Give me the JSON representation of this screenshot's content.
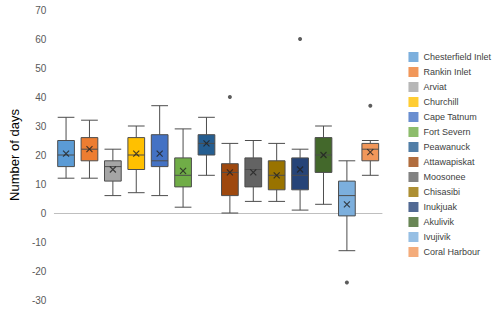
{
  "chart_data": {
    "type": "boxplot",
    "y_label": "Number of days",
    "ylim": [
      -30,
      70
    ],
    "yticks": [
      -30,
      -20,
      -10,
      0,
      10,
      20,
      30,
      40,
      50,
      60,
      70
    ],
    "grid": false,
    "legend": "right",
    "tick_labels": "y",
    "marker": "x",
    "series": [
      {
        "name": "Chesterfield Inlet",
        "color": "#5B9BD5",
        "values": [
          12,
          16,
          20,
          25,
          33
        ],
        "mean": 20.5,
        "outliers": []
      },
      {
        "name": "Rankin Inlet",
        "color": "#ED7D31",
        "values": [
          12,
          18,
          22,
          26,
          32
        ],
        "mean": 22,
        "outliers": []
      },
      {
        "name": "Arviat",
        "color": "#A5A5A5",
        "values": [
          6,
          11,
          16,
          18,
          22
        ],
        "mean": 15,
        "outliers": []
      },
      {
        "name": "Churchill",
        "color": "#FFC000",
        "values": [
          7,
          15,
          20,
          26,
          30
        ],
        "mean": 20.5,
        "outliers": []
      },
      {
        "name": "Cape Tatnum",
        "color": "#4472C4",
        "values": [
          6,
          16,
          18,
          27,
          37
        ],
        "mean": 20.5,
        "outliers": []
      },
      {
        "name": "Fort Severn",
        "color": "#70AD47",
        "values": [
          2,
          9,
          13,
          19,
          29
        ],
        "mean": 14.5,
        "outliers": []
      },
      {
        "name": "Peawanuck",
        "color": "#255E91",
        "values": [
          13,
          20,
          24,
          27,
          33
        ],
        "mean": 24,
        "outliers": []
      },
      {
        "name": "Attawapiskat",
        "color": "#9E480E",
        "values": [
          0,
          6,
          14,
          17,
          24
        ],
        "mean": 14,
        "outliers": [
          40
        ]
      },
      {
        "name": "Moosonee",
        "color": "#636363",
        "values": [
          4,
          9,
          15,
          19,
          25
        ],
        "mean": 14,
        "outliers": []
      },
      {
        "name": "Chisasibi",
        "color": "#997300",
        "values": [
          4,
          8,
          13,
          18,
          24
        ],
        "mean": 13,
        "outliers": []
      },
      {
        "name": "Inukjuak",
        "color": "#264478",
        "values": [
          1,
          8,
          13,
          19,
          22
        ],
        "mean": 15,
        "outliers": [
          60
        ]
      },
      {
        "name": "Akulivik",
        "color": "#43682B",
        "values": [
          3,
          14,
          20,
          26,
          30
        ],
        "mean": 20,
        "outliers": []
      },
      {
        "name": "Ivujivik",
        "color": "#7CAFDD",
        "values": [
          -13,
          -1,
          6,
          11,
          18
        ],
        "mean": 3,
        "outliers": [
          -24
        ]
      },
      {
        "name": "Coral Harbour",
        "color": "#F1975A",
        "values": [
          13,
          18,
          22,
          24,
          25
        ],
        "mean": 21,
        "outliers": [
          37
        ]
      }
    ]
  }
}
